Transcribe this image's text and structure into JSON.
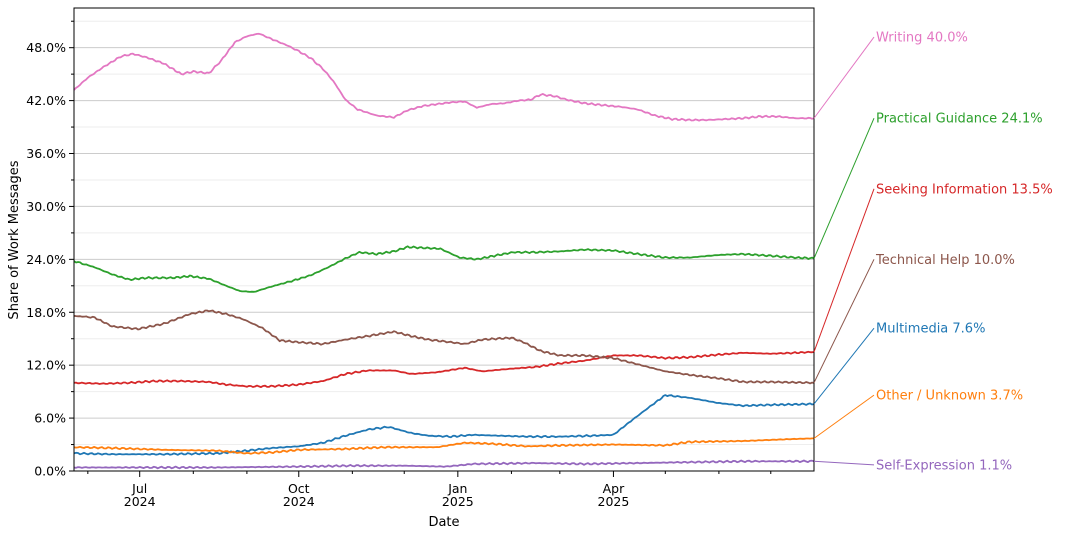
{
  "chart_data": {
    "type": "line",
    "xlabel": "Date",
    "ylabel": "Share of Work Messages",
    "x_range": [
      "2024-05-24",
      "2025-07-26"
    ],
    "ylim": [
      0,
      52.5
    ],
    "y_ticks": [
      0,
      6,
      12,
      18,
      24,
      30,
      36,
      42,
      48
    ],
    "y_tick_labels": [
      "0.0%",
      "6.0%",
      "12.0%",
      "18.0%",
      "24.0%",
      "30.0%",
      "36.0%",
      "42.0%",
      "48.0%"
    ],
    "x_ticks": [
      {
        "date": "2024-07-01",
        "line1": "Jul",
        "line2": "2024"
      },
      {
        "date": "2024-10-01",
        "line1": "Oct",
        "line2": "2024"
      },
      {
        "date": "2025-01-01",
        "line1": "Jan",
        "line2": "2025"
      },
      {
        "date": "2025-04-01",
        "line1": "Apr",
        "line2": "2025"
      }
    ],
    "x_minor_ticks": [
      "2024-06-01",
      "2024-08-01",
      "2024-09-01",
      "2024-11-01",
      "2024-12-01",
      "2025-02-01",
      "2025-03-01",
      "2025-05-01",
      "2025-06-01",
      "2025-07-01"
    ],
    "grid": true,
    "legend_position": "right, direct labels",
    "series": [
      {
        "name": "Writing",
        "end_label": "40.0%",
        "color": "#e377c2",
        "label_y": 49.2,
        "points": [
          [
            "2024-05-24",
            43.2
          ],
          [
            "2024-06-01",
            44.6
          ],
          [
            "2024-06-10",
            45.8
          ],
          [
            "2024-06-20",
            47.0
          ],
          [
            "2024-06-27",
            47.3
          ],
          [
            "2024-07-05",
            46.9
          ],
          [
            "2024-07-15",
            46.2
          ],
          [
            "2024-07-25",
            45.0
          ],
          [
            "2024-08-01",
            45.3
          ],
          [
            "2024-08-10",
            45.1
          ],
          [
            "2024-08-17",
            46.5
          ],
          [
            "2024-08-25",
            48.6
          ],
          [
            "2024-09-01",
            49.3
          ],
          [
            "2024-09-08",
            49.6
          ],
          [
            "2024-09-15",
            49.0
          ],
          [
            "2024-09-25",
            48.2
          ],
          [
            "2024-10-01",
            47.6
          ],
          [
            "2024-10-08",
            46.8
          ],
          [
            "2024-10-15",
            45.6
          ],
          [
            "2024-10-21",
            44.2
          ],
          [
            "2024-10-28",
            42.1
          ],
          [
            "2024-11-04",
            41.0
          ],
          [
            "2024-11-15",
            40.3
          ],
          [
            "2024-11-25",
            40.1
          ],
          [
            "2024-12-03",
            40.9
          ],
          [
            "2024-12-12",
            41.4
          ],
          [
            "2024-12-20",
            41.6
          ],
          [
            "2024-12-28",
            41.8
          ],
          [
            "2025-01-05",
            41.9
          ],
          [
            "2025-01-12",
            41.2
          ],
          [
            "2025-01-20",
            41.6
          ],
          [
            "2025-01-28",
            41.7
          ],
          [
            "2025-02-05",
            42.0
          ],
          [
            "2025-02-12",
            42.1
          ],
          [
            "2025-02-18",
            42.7
          ],
          [
            "2025-02-26",
            42.5
          ],
          [
            "2025-03-05",
            42.1
          ],
          [
            "2025-03-15",
            41.7
          ],
          [
            "2025-03-25",
            41.5
          ],
          [
            "2025-04-05",
            41.3
          ],
          [
            "2025-04-15",
            41.0
          ],
          [
            "2025-04-25",
            40.3
          ],
          [
            "2025-05-05",
            39.9
          ],
          [
            "2025-05-15",
            39.8
          ],
          [
            "2025-05-25",
            39.8
          ],
          [
            "2025-06-05",
            39.9
          ],
          [
            "2025-06-15",
            40.0
          ],
          [
            "2025-06-25",
            40.2
          ],
          [
            "2025-07-05",
            40.2
          ],
          [
            "2025-07-15",
            40.0
          ],
          [
            "2025-07-26",
            40.0
          ]
        ]
      },
      {
        "name": "Practical Guidance",
        "end_label": "24.1%",
        "color": "#2ca02c",
        "label_y": 40.0,
        "points": [
          [
            "2024-05-24",
            23.8
          ],
          [
            "2024-06-05",
            23.1
          ],
          [
            "2024-06-15",
            22.3
          ],
          [
            "2024-06-25",
            21.7
          ],
          [
            "2024-07-05",
            21.9
          ],
          [
            "2024-07-20",
            21.9
          ],
          [
            "2024-07-30",
            22.1
          ],
          [
            "2024-08-10",
            21.8
          ],
          [
            "2024-08-20",
            21.0
          ],
          [
            "2024-08-28",
            20.4
          ],
          [
            "2024-09-05",
            20.3
          ],
          [
            "2024-09-15",
            20.9
          ],
          [
            "2024-09-28",
            21.6
          ],
          [
            "2024-10-08",
            22.2
          ],
          [
            "2024-10-18",
            23.1
          ],
          [
            "2024-10-28",
            24.1
          ],
          [
            "2024-11-05",
            24.8
          ],
          [
            "2024-11-15",
            24.6
          ],
          [
            "2024-11-25",
            24.9
          ],
          [
            "2024-12-03",
            25.4
          ],
          [
            "2024-12-12",
            25.3
          ],
          [
            "2024-12-22",
            25.2
          ],
          [
            "2025-01-02",
            24.2
          ],
          [
            "2025-01-12",
            24.0
          ],
          [
            "2025-01-22",
            24.4
          ],
          [
            "2025-02-02",
            24.8
          ],
          [
            "2025-02-15",
            24.8
          ],
          [
            "2025-03-01",
            24.9
          ],
          [
            "2025-03-15",
            25.1
          ],
          [
            "2025-04-01",
            25.0
          ],
          [
            "2025-04-15",
            24.6
          ],
          [
            "2025-05-01",
            24.2
          ],
          [
            "2025-05-15",
            24.2
          ],
          [
            "2025-06-01",
            24.5
          ],
          [
            "2025-06-15",
            24.6
          ],
          [
            "2025-07-01",
            24.4
          ],
          [
            "2025-07-15",
            24.2
          ],
          [
            "2025-07-26",
            24.1
          ]
        ]
      },
      {
        "name": "Seeking Information",
        "end_label": "13.5%",
        "color": "#d62728",
        "label_y": 32.0,
        "points": [
          [
            "2024-05-24",
            10.0
          ],
          [
            "2024-06-10",
            9.9
          ],
          [
            "2024-06-25",
            10.0
          ],
          [
            "2024-07-10",
            10.2
          ],
          [
            "2024-07-25",
            10.2
          ],
          [
            "2024-08-10",
            10.1
          ],
          [
            "2024-08-20",
            9.8
          ],
          [
            "2024-09-01",
            9.6
          ],
          [
            "2024-09-15",
            9.6
          ],
          [
            "2024-10-01",
            9.8
          ],
          [
            "2024-10-15",
            10.2
          ],
          [
            "2024-10-28",
            11.0
          ],
          [
            "2024-11-10",
            11.4
          ],
          [
            "2024-11-25",
            11.4
          ],
          [
            "2024-12-05",
            11.0
          ],
          [
            "2024-12-20",
            11.2
          ],
          [
            "2025-01-05",
            11.7
          ],
          [
            "2025-01-15",
            11.3
          ],
          [
            "2025-02-01",
            11.6
          ],
          [
            "2025-02-15",
            11.8
          ],
          [
            "2025-03-01",
            12.2
          ],
          [
            "2025-03-15",
            12.5
          ],
          [
            "2025-04-01",
            13.1
          ],
          [
            "2025-04-15",
            13.1
          ],
          [
            "2025-05-01",
            12.8
          ],
          [
            "2025-05-15",
            12.9
          ],
          [
            "2025-06-01",
            13.2
          ],
          [
            "2025-06-15",
            13.4
          ],
          [
            "2025-07-01",
            13.3
          ],
          [
            "2025-07-15",
            13.4
          ],
          [
            "2025-07-26",
            13.5
          ]
        ]
      },
      {
        "name": "Technical Help",
        "end_label": "10.0%",
        "color": "#8c564b",
        "label_y": 24.0,
        "points": [
          [
            "2024-05-24",
            17.6
          ],
          [
            "2024-06-05",
            17.4
          ],
          [
            "2024-06-15",
            16.4
          ],
          [
            "2024-06-30",
            16.1
          ],
          [
            "2024-07-15",
            16.7
          ],
          [
            "2024-07-30",
            17.8
          ],
          [
            "2024-08-10",
            18.2
          ],
          [
            "2024-08-20",
            17.8
          ],
          [
            "2024-08-30",
            17.2
          ],
          [
            "2024-09-10",
            16.2
          ],
          [
            "2024-09-20",
            14.8
          ],
          [
            "2024-10-01",
            14.6
          ],
          [
            "2024-10-15",
            14.4
          ],
          [
            "2024-10-28",
            14.9
          ],
          [
            "2024-11-10",
            15.3
          ],
          [
            "2024-11-25",
            15.8
          ],
          [
            "2024-12-05",
            15.3
          ],
          [
            "2024-12-15",
            14.9
          ],
          [
            "2024-12-28",
            14.6
          ],
          [
            "2025-01-05",
            14.4
          ],
          [
            "2025-01-15",
            14.9
          ],
          [
            "2025-02-01",
            15.1
          ],
          [
            "2025-02-08",
            14.6
          ],
          [
            "2025-02-18",
            13.6
          ],
          [
            "2025-03-01",
            13.1
          ],
          [
            "2025-03-15",
            13.1
          ],
          [
            "2025-04-01",
            12.8
          ],
          [
            "2025-04-15",
            12.1
          ],
          [
            "2025-05-01",
            11.3
          ],
          [
            "2025-05-15",
            10.9
          ],
          [
            "2025-06-01",
            10.5
          ],
          [
            "2025-06-15",
            10.1
          ],
          [
            "2025-07-01",
            10.1
          ],
          [
            "2025-07-26",
            10.0
          ]
        ]
      },
      {
        "name": "Multimedia",
        "end_label": "7.6%",
        "color": "#1f77b4",
        "label_y": 16.2,
        "points": [
          [
            "2024-05-24",
            2.0
          ],
          [
            "2024-06-15",
            1.9
          ],
          [
            "2024-07-15",
            1.9
          ],
          [
            "2024-08-15",
            2.0
          ],
          [
            "2024-09-01",
            2.3
          ],
          [
            "2024-09-15",
            2.6
          ],
          [
            "2024-10-01",
            2.8
          ],
          [
            "2024-10-15",
            3.2
          ],
          [
            "2024-10-28",
            4.0
          ],
          [
            "2024-11-10",
            4.7
          ],
          [
            "2024-11-22",
            5.0
          ],
          [
            "2024-12-05",
            4.3
          ],
          [
            "2024-12-15",
            4.0
          ],
          [
            "2024-12-28",
            3.9
          ],
          [
            "2025-01-10",
            4.1
          ],
          [
            "2025-01-25",
            4.0
          ],
          [
            "2025-02-10",
            3.9
          ],
          [
            "2025-03-01",
            3.9
          ],
          [
            "2025-03-20",
            4.0
          ],
          [
            "2025-04-01",
            4.1
          ],
          [
            "2025-04-10",
            5.5
          ],
          [
            "2025-04-20",
            7.0
          ],
          [
            "2025-05-01",
            8.6
          ],
          [
            "2025-05-15",
            8.3
          ],
          [
            "2025-06-01",
            7.7
          ],
          [
            "2025-06-15",
            7.4
          ],
          [
            "2025-07-01",
            7.5
          ],
          [
            "2025-07-26",
            7.6
          ]
        ]
      },
      {
        "name": "Other / Unknown",
        "end_label": "3.7%",
        "color": "#ff7f0e",
        "label_y": 8.6,
        "points": [
          [
            "2024-05-24",
            2.7
          ],
          [
            "2024-06-15",
            2.6
          ],
          [
            "2024-07-15",
            2.4
          ],
          [
            "2024-08-15",
            2.3
          ],
          [
            "2024-09-01",
            2.0
          ],
          [
            "2024-09-15",
            2.1
          ],
          [
            "2024-10-01",
            2.4
          ],
          [
            "2024-10-28",
            2.5
          ],
          [
            "2024-11-20",
            2.7
          ],
          [
            "2024-12-20",
            2.7
          ],
          [
            "2025-01-05",
            3.2
          ],
          [
            "2025-01-20",
            3.1
          ],
          [
            "2025-02-10",
            2.8
          ],
          [
            "2025-03-01",
            2.9
          ],
          [
            "2025-04-01",
            3.0
          ],
          [
            "2025-05-01",
            2.9
          ],
          [
            "2025-05-15",
            3.3
          ],
          [
            "2025-06-15",
            3.4
          ],
          [
            "2025-07-10",
            3.6
          ],
          [
            "2025-07-26",
            3.7
          ]
        ]
      },
      {
        "name": "Self-Expression",
        "end_label": "1.1%",
        "color": "#9467bd",
        "label_y": 0.7,
        "points": [
          [
            "2024-05-24",
            0.4
          ],
          [
            "2024-07-01",
            0.4
          ],
          [
            "2024-08-15",
            0.4
          ],
          [
            "2024-10-01",
            0.5
          ],
          [
            "2024-11-01",
            0.6
          ],
          [
            "2024-12-01",
            0.6
          ],
          [
            "2024-12-25",
            0.5
          ],
          [
            "2025-01-10",
            0.8
          ],
          [
            "2025-02-15",
            0.9
          ],
          [
            "2025-03-15",
            0.8
          ],
          [
            "2025-04-15",
            0.9
          ],
          [
            "2025-05-15",
            1.0
          ],
          [
            "2025-06-15",
            1.1
          ],
          [
            "2025-07-26",
            1.1
          ]
        ]
      }
    ]
  }
}
